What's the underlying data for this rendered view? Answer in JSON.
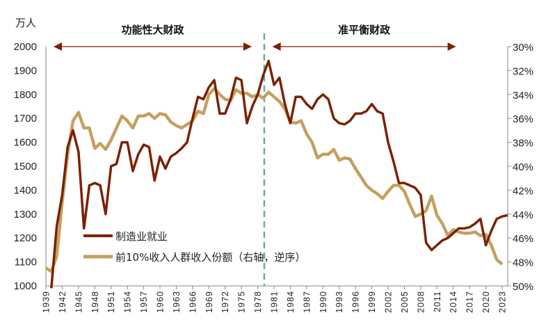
{
  "chart_data": {
    "type": "line",
    "title": "",
    "left_unit": "万人",
    "ylim_left": [
      1000,
      2000
    ],
    "yticks_left": [
      "2000",
      "1900",
      "1800",
      "1700",
      "1600",
      "1500",
      "1400",
      "1300",
      "1200",
      "1100",
      "1000"
    ],
    "ylim_right": [
      30,
      50
    ],
    "right_inverted": true,
    "yticks_right": [
      "30%",
      "32%",
      "34%",
      "36%",
      "38%",
      "40%",
      "42%",
      "44%",
      "46%",
      "48%",
      "50%"
    ],
    "xlim": [
      1939,
      2024
    ],
    "xticks": [
      "1939",
      "1942",
      "1945",
      "1948",
      "1951",
      "1954",
      "1957",
      "1960",
      "1963",
      "1966",
      "1969",
      "1972",
      "1975",
      "1978",
      "1981",
      "1984",
      "1987",
      "1990",
      "1993",
      "1996",
      "1999",
      "2002",
      "2005",
      "2008",
      "2011",
      "2014",
      "2017",
      "2020",
      "2023"
    ],
    "grid": false,
    "legend_position": "bottom-left",
    "annotations": {
      "divider_year": 1979.2,
      "periods": [
        {
          "label": "功能性大财政",
          "from": 1940.4,
          "to": 1976.9
        },
        {
          "label": "准平衡财政",
          "from": 1980.7,
          "to": 2014.5
        }
      ]
    },
    "series": [
      {
        "name": "制造业就业",
        "axis": "left",
        "color": "#7B2100",
        "x_start": 1940,
        "values": [
          990,
          1250,
          1380,
          1580,
          1650,
          1560,
          1240,
          1420,
          1430,
          1420,
          1300,
          1500,
          1510,
          1600,
          1600,
          1480,
          1550,
          1590,
          1580,
          1440,
          1540,
          1490,
          1540,
          1555,
          1575,
          1600,
          1700,
          1790,
          1780,
          1830,
          1860,
          1720,
          1720,
          1780,
          1870,
          1860,
          1680,
          1750,
          1800,
          1880,
          1940,
          1840,
          1870,
          1760,
          1680,
          1790,
          1790,
          1760,
          1740,
          1780,
          1800,
          1780,
          1700,
          1680,
          1675,
          1690,
          1720,
          1720,
          1730,
          1760,
          1730,
          1720,
          1600,
          1520,
          1430,
          1430,
          1420,
          1410,
          1380,
          1180,
          1150,
          1170,
          1190,
          1200,
          1220,
          1240,
          1240,
          1245,
          1260,
          1280,
          1170,
          1230,
          1280,
          1290,
          1295
        ]
      },
      {
        "name": "前10%收入人群收入份额（右轴，逆序）",
        "axis": "right",
        "color": "#C4A060",
        "x_start": 1939,
        "values": [
          48.5,
          48.8,
          47.5,
          43,
          39,
          36.2,
          35.5,
          36.8,
          36.8,
          38.5,
          38.1,
          38.6,
          37.8,
          36.8,
          35.8,
          36.2,
          36.8,
          35.8,
          35.8,
          35.6,
          36,
          35.6,
          35.7,
          36.3,
          36.6,
          36.8,
          36.5,
          36.2,
          35.4,
          35.6,
          34,
          33.5,
          34,
          34.4,
          34.5,
          33.6,
          33.9,
          33.9,
          34.2,
          34,
          34.3,
          33.8,
          34.2,
          34.6,
          35.2,
          36.3,
          36.4,
          36.2,
          37.3,
          38,
          39.3,
          39,
          39,
          38.6,
          39.5,
          39.3,
          39.4,
          40.2,
          40.9,
          41.6,
          42,
          42.3,
          42.7,
          42.1,
          41.6,
          41.6,
          42.1,
          43.2,
          44.2,
          44,
          43.7,
          42.5,
          44.1,
          44.8,
          45.8,
          45.3,
          45.5,
          45.6,
          45.6,
          45.5,
          45.8,
          45.7,
          46.6,
          47.8,
          48.2
        ]
      }
    ]
  }
}
